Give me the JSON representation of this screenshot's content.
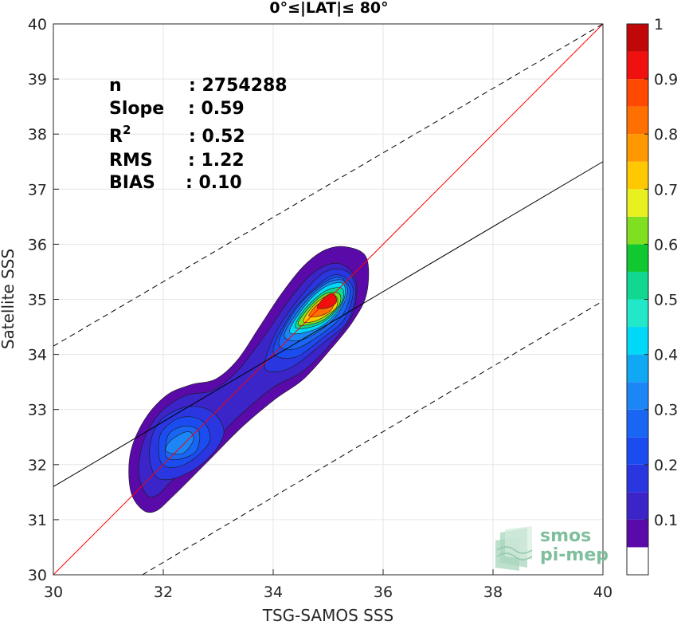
{
  "chart_data": {
    "type": "contour",
    "title": "0°≤|LAT|≤ 80°",
    "xlabel": "TSG-SAMOS SSS",
    "ylabel": "Satellite SSS",
    "xlim": [
      30,
      40
    ],
    "ylim": [
      30,
      40
    ],
    "x_ticks": [
      "30",
      "32",
      "34",
      "36",
      "38",
      "40"
    ],
    "y_ticks": [
      "30",
      "31",
      "32",
      "33",
      "34",
      "35",
      "36",
      "37",
      "38",
      "39",
      "40"
    ],
    "grid": true,
    "stats": [
      {
        "label": "n",
        "value": ": 2754288"
      },
      {
        "label": "Slope",
        "value": ": 0.59"
      },
      {
        "label": "R",
        "sup": "2",
        "value": ": 0.52"
      },
      {
        "label": "RMS",
        "value": ": 1.22"
      },
      {
        "label": "BIAS",
        "value": ": 0.10"
      }
    ],
    "lines": [
      {
        "name": "1:1",
        "color": "#ff0000",
        "points": [
          [
            30,
            30
          ],
          [
            40,
            40
          ]
        ]
      },
      {
        "name": "regression",
        "color": "#000000",
        "points": [
          [
            30,
            31.6
          ],
          [
            40,
            37.5
          ]
        ]
      },
      {
        "name": "upper",
        "color": "#000000",
        "dash": true,
        "points": [
          [
            30,
            34.15
          ],
          [
            40,
            40
          ]
        ]
      },
      {
        "name": "lower",
        "color": "#000000",
        "dash": true,
        "points": [
          [
            31.62,
            30
          ],
          [
            40,
            34.97
          ]
        ]
      }
    ],
    "colorbar": {
      "ticks": [
        "0.1",
        "0.2",
        "0.3",
        "0.4",
        "0.5",
        "0.6",
        "0.7",
        "0.8",
        "0.9",
        "1"
      ],
      "levels": [
        0.05,
        0.1,
        0.15,
        0.2,
        0.25,
        0.3,
        0.35,
        0.4,
        0.45,
        0.5,
        0.55,
        0.6,
        0.65,
        0.7,
        0.75,
        0.8,
        0.85,
        0.9,
        0.95,
        1.0
      ],
      "colors": [
        "#ffffff",
        "#5a0aa8",
        "#3b24c8",
        "#2a36e0",
        "#1a4cf0",
        "#1a66f4",
        "#1c86f6",
        "#10a8f4",
        "#00d8f8",
        "#20e8c8",
        "#10d890",
        "#10c830",
        "#80e020",
        "#e8f020",
        "#ffc800",
        "#ff9800",
        "#ff7000",
        "#ff4800",
        "#f01010",
        "#c00808",
        "#800000"
      ]
    },
    "density_contours": [
      {
        "level": 0.05,
        "points": [
          [
            31.6,
            31.2
          ],
          [
            31.4,
            31.55
          ],
          [
            31.4,
            32.2
          ],
          [
            31.65,
            32.8
          ],
          [
            32.05,
            33.25
          ],
          [
            32.5,
            33.45
          ],
          [
            32.95,
            33.55
          ],
          [
            33.35,
            33.9
          ],
          [
            33.75,
            34.5
          ],
          [
            34.15,
            35.1
          ],
          [
            34.55,
            35.6
          ],
          [
            34.95,
            35.9
          ],
          [
            35.35,
            35.95
          ],
          [
            35.7,
            35.75
          ],
          [
            35.7,
            35.1
          ],
          [
            35.45,
            34.6
          ],
          [
            35.05,
            34.1
          ],
          [
            34.55,
            33.55
          ],
          [
            34.05,
            33.2
          ],
          [
            33.45,
            32.7
          ],
          [
            32.85,
            32.1
          ],
          [
            32.2,
            31.45
          ],
          [
            31.85,
            31.15
          ]
        ]
      },
      {
        "level": 0.1,
        "points": [
          [
            31.7,
            31.45
          ],
          [
            31.55,
            31.85
          ],
          [
            31.65,
            32.45
          ],
          [
            31.95,
            32.95
          ],
          [
            32.4,
            33.25
          ],
          [
            32.9,
            33.35
          ],
          [
            33.35,
            33.7
          ],
          [
            33.85,
            34.35
          ],
          [
            34.3,
            35.0
          ],
          [
            34.75,
            35.5
          ],
          [
            35.2,
            35.65
          ],
          [
            35.5,
            35.35
          ],
          [
            35.45,
            34.75
          ],
          [
            35.1,
            34.25
          ],
          [
            34.55,
            33.7
          ],
          [
            34.0,
            33.4
          ],
          [
            33.4,
            32.9
          ],
          [
            32.8,
            32.3
          ],
          [
            32.15,
            31.7
          ],
          [
            31.9,
            31.45
          ]
        ]
      },
      {
        "level": 0.15,
        "points": [
          [
            31.85,
            31.8
          ],
          [
            31.75,
            32.3
          ],
          [
            31.95,
            32.8
          ],
          [
            32.45,
            33.05
          ],
          [
            32.9,
            32.95
          ],
          [
            33.1,
            32.55
          ],
          [
            32.75,
            32.05
          ],
          [
            32.2,
            31.75
          ]
        ]
      },
      {
        "level": 0.15,
        "points": [
          [
            33.85,
            33.75
          ],
          [
            34.05,
            34.4
          ],
          [
            34.5,
            35.05
          ],
          [
            34.95,
            35.5
          ],
          [
            35.35,
            35.5
          ],
          [
            35.5,
            35.15
          ],
          [
            35.35,
            34.6
          ],
          [
            34.9,
            34.2
          ],
          [
            34.3,
            33.75
          ]
        ]
      },
      {
        "level": 0.2,
        "points": [
          [
            31.95,
            32.05
          ],
          [
            31.95,
            32.55
          ],
          [
            32.3,
            32.85
          ],
          [
            32.7,
            32.8
          ],
          [
            32.85,
            32.45
          ],
          [
            32.55,
            32.1
          ],
          [
            32.2,
            31.95
          ]
        ]
      },
      {
        "level": 0.2,
        "points": [
          [
            34.0,
            34.05
          ],
          [
            34.3,
            34.7
          ],
          [
            34.75,
            35.2
          ],
          [
            35.15,
            35.45
          ],
          [
            35.45,
            35.2
          ],
          [
            35.3,
            34.65
          ],
          [
            34.9,
            34.3
          ],
          [
            34.4,
            33.95
          ]
        ]
      },
      {
        "level": 0.25,
        "points": [
          [
            32.05,
            32.15
          ],
          [
            32.1,
            32.55
          ],
          [
            32.4,
            32.7
          ],
          [
            32.65,
            32.6
          ],
          [
            32.6,
            32.25
          ],
          [
            32.3,
            32.1
          ]
        ]
      },
      {
        "level": 0.25,
        "points": [
          [
            34.1,
            34.2
          ],
          [
            34.4,
            34.8
          ],
          [
            34.85,
            35.25
          ],
          [
            35.2,
            35.4
          ],
          [
            35.4,
            35.15
          ],
          [
            35.25,
            34.7
          ],
          [
            34.85,
            34.35
          ],
          [
            34.4,
            34.1
          ]
        ]
      },
      {
        "level": 0.3,
        "points": [
          [
            32.05,
            32.25
          ],
          [
            32.15,
            32.45
          ],
          [
            32.45,
            32.6
          ],
          [
            32.55,
            32.45
          ],
          [
            32.35,
            32.2
          ]
        ]
      },
      {
        "level": 0.3,
        "points": [
          [
            34.2,
            34.35
          ],
          [
            34.5,
            34.85
          ],
          [
            34.9,
            35.25
          ],
          [
            35.25,
            35.35
          ],
          [
            35.35,
            35.1
          ],
          [
            35.15,
            34.7
          ],
          [
            34.8,
            34.4
          ],
          [
            34.45,
            34.25
          ]
        ]
      },
      {
        "level": 0.4,
        "points": [
          [
            34.3,
            34.4
          ],
          [
            34.55,
            34.85
          ],
          [
            34.9,
            35.2
          ],
          [
            35.25,
            35.3
          ],
          [
            35.3,
            35.05
          ],
          [
            35.1,
            34.7
          ],
          [
            34.75,
            34.45
          ]
        ]
      },
      {
        "level": 0.5,
        "points": [
          [
            34.4,
            34.5
          ],
          [
            34.6,
            34.85
          ],
          [
            34.95,
            35.15
          ],
          [
            35.25,
            35.2
          ],
          [
            35.25,
            34.95
          ],
          [
            35.0,
            34.65
          ],
          [
            34.7,
            34.5
          ]
        ]
      },
      {
        "level": 0.6,
        "points": [
          [
            34.45,
            34.55
          ],
          [
            34.65,
            34.85
          ],
          [
            34.95,
            35.1
          ],
          [
            35.2,
            35.1
          ],
          [
            35.2,
            34.9
          ],
          [
            34.95,
            34.65
          ],
          [
            34.7,
            34.55
          ]
        ]
      },
      {
        "level": 0.7,
        "points": [
          [
            34.55,
            34.6
          ],
          [
            34.7,
            34.85
          ],
          [
            34.95,
            35.05
          ],
          [
            35.15,
            35.05
          ],
          [
            35.15,
            34.85
          ],
          [
            34.95,
            34.7
          ],
          [
            34.75,
            34.6
          ]
        ]
      },
      {
        "level": 0.8,
        "points": [
          [
            34.65,
            34.7
          ],
          [
            34.8,
            34.9
          ],
          [
            35.0,
            35.0
          ],
          [
            35.1,
            34.95
          ],
          [
            35.05,
            34.8
          ],
          [
            34.85,
            34.7
          ]
        ]
      },
      {
        "level": 0.9,
        "points": [
          [
            34.8,
            34.85
          ],
          [
            34.95,
            35.05
          ],
          [
            35.1,
            35.1
          ],
          [
            35.15,
            34.95
          ],
          [
            35.0,
            34.85
          ]
        ]
      }
    ],
    "watermark": [
      "smos",
      "pi-mep"
    ]
  }
}
